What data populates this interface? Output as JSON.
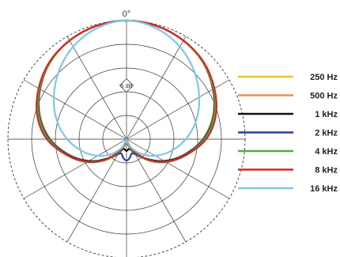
{
  "chart_data": {
    "type": "polar",
    "top_angle_label": "0°",
    "scale_label": "5 dB",
    "angle_step_deg": 30,
    "rings_db": [
      -25,
      -20,
      -15,
      -10,
      -5,
      0
    ],
    "outer_ring_dashed": true,
    "series": [
      {
        "name": "250 Hz",
        "color": "#f2c230",
        "legend_position": 0,
        "angles": [
          0,
          15,
          30,
          45,
          60,
          75,
          90,
          105,
          120,
          135,
          150,
          160,
          170,
          180
        ],
        "db": [
          0,
          -0.3,
          -1.0,
          -2.2,
          -4.0,
          -6.2,
          -9.0,
          -12.5,
          -15.8,
          -19.0,
          -22.0,
          -23.3,
          -24.3,
          -25
        ]
      },
      {
        "name": "500 Hz",
        "color": "#ef8b55",
        "legend_position": 1,
        "angles": [
          0,
          15,
          30,
          45,
          60,
          75,
          90,
          105,
          120,
          135,
          150,
          160,
          170,
          180
        ],
        "db": [
          0,
          -0.3,
          -1.0,
          -2.2,
          -4.0,
          -6.0,
          -8.8,
          -12.3,
          -15.7,
          -19.0,
          -22.0,
          -23.3,
          -24.2,
          -25
        ]
      },
      {
        "name": "1 kHz",
        "color": "#111111",
        "legend_position": 2,
        "angles": [
          0,
          15,
          30,
          45,
          60,
          75,
          90,
          105,
          120,
          135,
          150,
          160,
          170,
          180
        ],
        "db": [
          0,
          -0.3,
          -1.0,
          -2.1,
          -3.9,
          -6.0,
          -8.8,
          -12.3,
          -15.8,
          -19.2,
          -21.8,
          -22.8,
          -22.8,
          -22.5
        ]
      },
      {
        "name": "2 kHz",
        "color": "#2a3f9a",
        "legend_position": 3,
        "angles": [
          0,
          15,
          30,
          45,
          60,
          75,
          90,
          105,
          120,
          135,
          150,
          160,
          170,
          180
        ],
        "db": [
          0,
          -0.3,
          -1.0,
          -2.1,
          -3.9,
          -6.0,
          -8.8,
          -12.3,
          -15.6,
          -19.0,
          -21.3,
          -21.8,
          -21.0,
          -20.5
        ]
      },
      {
        "name": "4 kHz",
        "color": "#5bab3b",
        "legend_position": 4,
        "angles": [
          0,
          15,
          30,
          45,
          60,
          75,
          90,
          105,
          120,
          135,
          150,
          160,
          170,
          180
        ],
        "db": [
          0,
          -0.3,
          -1.0,
          -2.1,
          -3.8,
          -5.8,
          -8.5,
          -12.0,
          -15.3,
          -18.8,
          -22.0,
          -23.3,
          -24.0,
          -24.3
        ]
      },
      {
        "name": "8 kHz",
        "color": "#d42a20",
        "legend_position": 5,
        "angles": [
          0,
          15,
          30,
          45,
          60,
          75,
          90,
          105,
          120,
          135,
          150,
          160,
          170,
          180
        ],
        "db": [
          0,
          -0.3,
          -1.0,
          -2.0,
          -3.6,
          -5.5,
          -8.2,
          -12.0,
          -15.5,
          -19.0,
          -22.3,
          -23.6,
          -24.5,
          -25
        ]
      },
      {
        "name": "16 kHz",
        "color": "#7ec8e3",
        "legend_position": 6,
        "angles": [
          0,
          15,
          30,
          45,
          60,
          75,
          90,
          105,
          120,
          135,
          150,
          160,
          170,
          180
        ],
        "db": [
          0,
          -0.8,
          -2.5,
          -4.8,
          -7.3,
          -9.8,
          -12.5,
          -15.3,
          -18.0,
          -20.6,
          -22.8,
          -24.0,
          -24.7,
          -25
        ]
      }
    ]
  }
}
